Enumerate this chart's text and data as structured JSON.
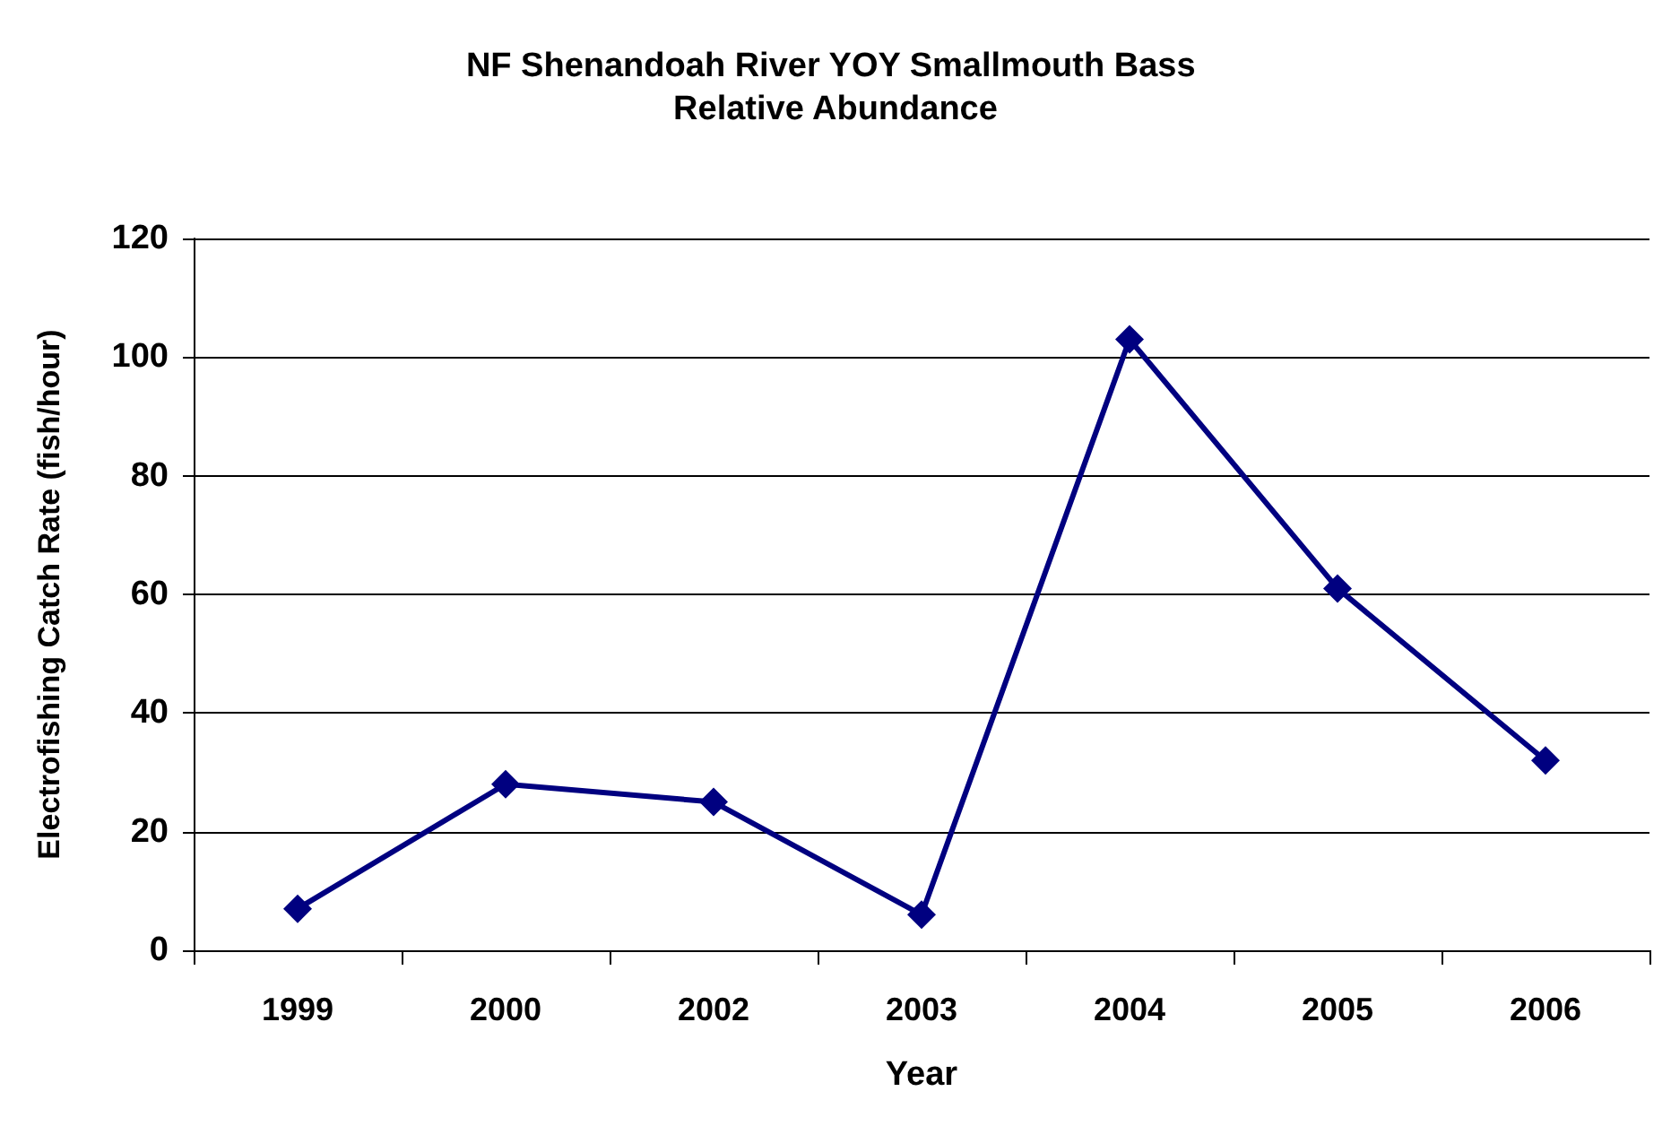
{
  "chart_data": {
    "type": "line",
    "title": "NF Shenandoah River YOY Smallmouth Bass Relative Abundance",
    "xlabel": "Year",
    "ylabel": "Electrofishing Catch Rate (fish/hour)",
    "categories": [
      "1999",
      "2000",
      "2002",
      "2003",
      "2004",
      "2005",
      "2006"
    ],
    "series": [
      {
        "color": "#000080",
        "values": [
          7,
          28,
          25,
          6,
          103,
          61,
          32
        ]
      }
    ],
    "ylim": [
      0,
      120
    ],
    "yticks": [
      0,
      20,
      40,
      60,
      80,
      100,
      120
    ],
    "grid": "y",
    "marker": "diamond",
    "line_style": "solid"
  }
}
